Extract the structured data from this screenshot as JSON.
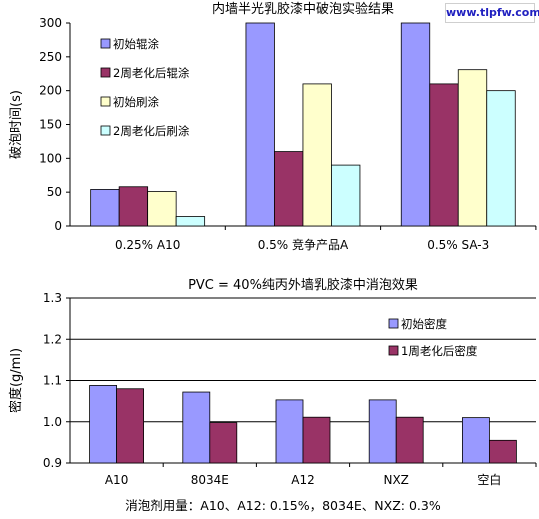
{
  "watermark": "www.tlpfw.com",
  "chart_data": [
    {
      "type": "bar",
      "title": "内墙半光乳胶漆中破泡实验结果",
      "ylabel": "破泡时间(s)",
      "xlabel": "",
      "ylim": [
        0,
        300
      ],
      "yticks": [
        "0",
        "50",
        "100",
        "150",
        "200",
        "250",
        "300"
      ],
      "grid": false,
      "legend_position": "top-left",
      "categories": [
        "0.25% A10",
        "0.5% 竞争产品A",
        "0.5% SA-3"
      ],
      "series": [
        {
          "name": "初始辊涂",
          "color": "#9999ff",
          "values": [
            54,
            300,
            300
          ]
        },
        {
          "name": "2周老化后辊涂",
          "color": "#993366",
          "values": [
            58,
            110,
            210
          ]
        },
        {
          "name": "初始刷涂",
          "color": "#ffffcc",
          "values": [
            51,
            210,
            231
          ]
        },
        {
          "name": "2周老化后刷涂",
          "color": "#ccffff",
          "values": [
            14,
            90,
            200
          ]
        }
      ]
    },
    {
      "type": "bar",
      "title": "PVC = 40%纯丙外墙乳胶漆中消泡效果",
      "ylabel": "密度(g/ml)",
      "xlabel": "消泡剂用量：A10、A12: 0.15%，8034E、NXZ: 0.3%",
      "ylim": [
        0.9,
        1.3
      ],
      "yticks": [
        "0.9",
        "1.0",
        "1.1",
        "1.2",
        "1.3"
      ],
      "grid": true,
      "legend_position": "top-right",
      "categories": [
        "A10",
        "8034E",
        "A12",
        "NXZ",
        "空白"
      ],
      "series": [
        {
          "name": "初始密度",
          "color": "#9999ff",
          "values": [
            1.088,
            1.072,
            1.053,
            1.053,
            1.01
          ]
        },
        {
          "name": "1周老化后密度",
          "color": "#993366",
          "values": [
            1.08,
            0.998,
            1.011,
            1.011,
            0.955
          ]
        }
      ]
    }
  ]
}
